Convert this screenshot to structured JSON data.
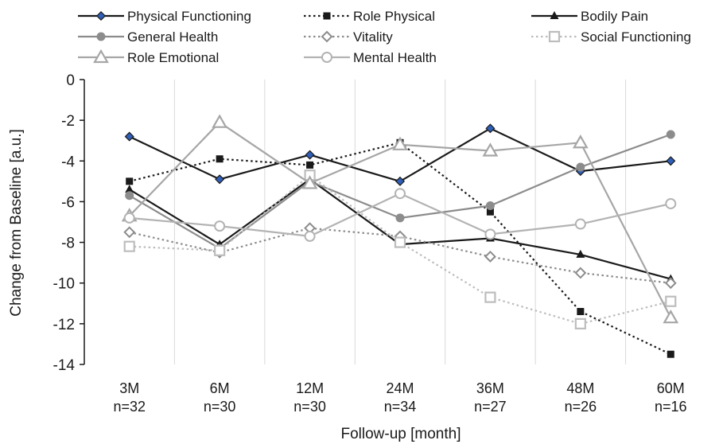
{
  "chart_data": {
    "type": "line",
    "title": "",
    "xlabel": "Follow-up  [month]",
    "ylabel": "Change from Baseline [a.u.]",
    "ylim": [
      -14,
      0
    ],
    "yticks": [
      0,
      -2,
      -4,
      -6,
      -8,
      -10,
      -12,
      -14
    ],
    "grid": "vertical separators between categories",
    "legend_position": "top",
    "categories": [
      {
        "label": "3M",
        "n": "n=32"
      },
      {
        "label": "6M",
        "n": "n=30"
      },
      {
        "label": "12M",
        "n": "n=30"
      },
      {
        "label": "24M",
        "n": "n=34"
      },
      {
        "label": "36M",
        "n": "n=27"
      },
      {
        "label": "48M",
        "n": "n=26"
      },
      {
        "label": "60M",
        "n": "n=16"
      }
    ],
    "series": [
      {
        "name": "Physical Functioning",
        "color": "#1a1a1a",
        "marker": "diamond-blue",
        "dash": "solid",
        "values": [
          -2.8,
          -4.9,
          -3.7,
          -5.0,
          -2.4,
          -4.5,
          -4.0
        ]
      },
      {
        "name": "Role Physical",
        "color": "#1a1a1a",
        "marker": "square-filled",
        "dash": "dotted",
        "values": [
          -5.0,
          -3.9,
          -4.2,
          -3.1,
          -6.5,
          -11.4,
          -13.5
        ]
      },
      {
        "name": "Bodily Pain",
        "color": "#1a1a1a",
        "marker": "triangle-filled",
        "dash": "solid",
        "values": [
          -5.4,
          -8.1,
          -4.9,
          -8.1,
          -7.8,
          -8.6,
          -9.8
        ]
      },
      {
        "name": "General Health",
        "color": "#8c8c8c",
        "marker": "circle-filled",
        "dash": "solid",
        "values": [
          -5.7,
          -8.3,
          -5.0,
          -6.8,
          -6.2,
          -4.3,
          -2.7
        ]
      },
      {
        "name": "Vitality",
        "color": "#8c8c8c",
        "marker": "diamond-open",
        "dash": "dotted",
        "values": [
          -7.5,
          -8.5,
          -7.3,
          -7.7,
          -8.7,
          -9.5,
          -10.0
        ]
      },
      {
        "name": "Social Functioning",
        "color": "#bdbdbd",
        "marker": "square-open",
        "dash": "dotted",
        "values": [
          -8.2,
          -8.4,
          -4.7,
          -8.0,
          -10.7,
          -12.0,
          -10.9
        ]
      },
      {
        "name": "Role Emotional",
        "color": "#a6a6a6",
        "marker": "triangle-open",
        "dash": "solid",
        "values": [
          -6.7,
          -2.1,
          -5.1,
          -3.2,
          -3.5,
          -3.1,
          -11.7
        ]
      },
      {
        "name": "Mental Health",
        "color": "#b3b3b3",
        "marker": "circle-open",
        "dash": "solid",
        "values": [
          -6.8,
          -7.2,
          -7.7,
          -5.6,
          -7.6,
          -7.1,
          -6.1
        ]
      }
    ]
  }
}
